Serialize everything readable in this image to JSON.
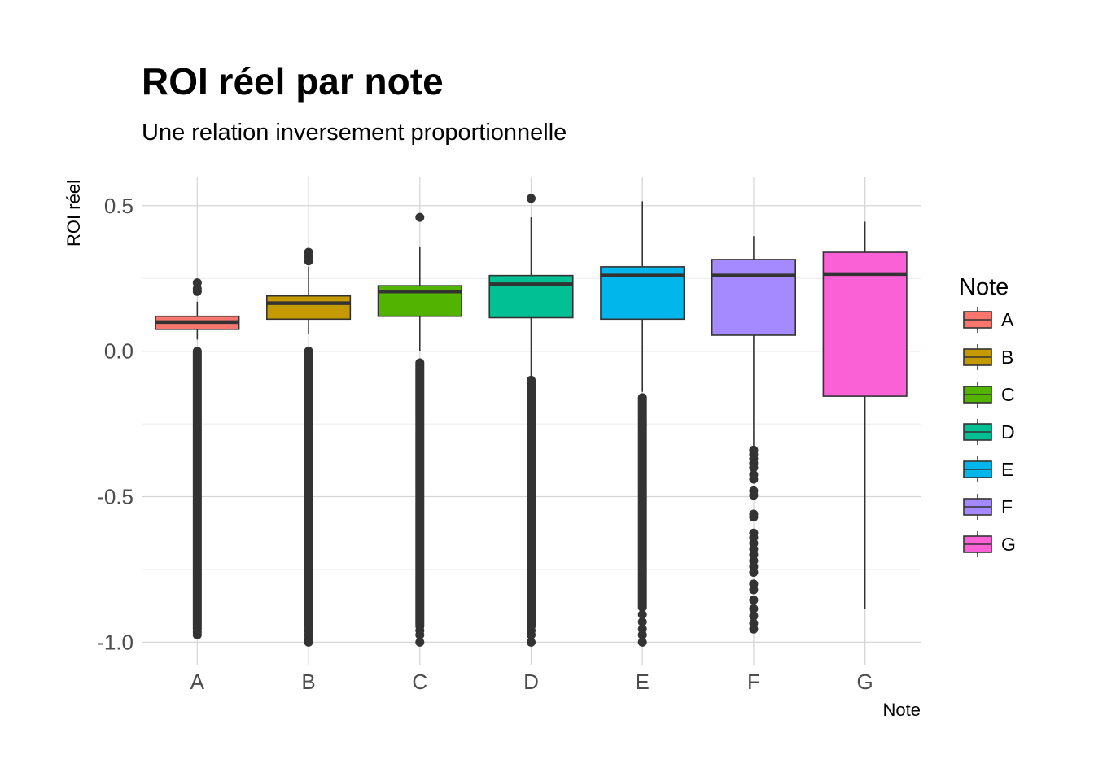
{
  "chart_data": {
    "type": "boxplot",
    "title": "ROI réel par note",
    "subtitle": "Une relation inversement proportionnelle",
    "xlabel": "Note",
    "ylabel": "ROI réel",
    "ylim": [
      -1.08,
      0.6
    ],
    "yticks": [
      0.5,
      0.0,
      -0.5,
      -1.0
    ],
    "ytick_labels": [
      "0.5",
      "0.0",
      "-0.5",
      "-1.0"
    ],
    "categories": [
      "A",
      "B",
      "C",
      "D",
      "E",
      "F",
      "G"
    ],
    "grid": true,
    "legend": {
      "title": "Note",
      "position": "right"
    },
    "series": [
      {
        "name": "A",
        "color": "#F8766D",
        "whisker_low": 0.04,
        "q1": 0.075,
        "median": 0.1,
        "q3": 0.12,
        "whisker_high": 0.17,
        "outliers_high": [
          0.205,
          0.215,
          0.235
        ],
        "outlier_band": [
          -0.955,
          0.0
        ],
        "outliers_extra": [
          -0.965,
          -0.975
        ]
      },
      {
        "name": "B",
        "color": "#C49A00",
        "whisker_low": 0.06,
        "q1": 0.11,
        "median": 0.165,
        "q3": 0.19,
        "whisker_high": 0.29,
        "outliers_high": [
          0.31,
          0.325,
          0.34
        ],
        "outlier_band": [
          -0.945,
          0.0
        ],
        "outliers_extra": [
          -0.96,
          -0.975,
          -0.99,
          -1.0
        ]
      },
      {
        "name": "C",
        "color": "#53B400",
        "whisker_low": 0.0,
        "q1": 0.12,
        "median": 0.205,
        "q3": 0.225,
        "whisker_high": 0.36,
        "outliers_high": [
          0.46
        ],
        "outlier_band": [
          -0.945,
          -0.04
        ],
        "outliers_extra": [
          -0.96,
          -0.975,
          -1.0
        ]
      },
      {
        "name": "D",
        "color": "#00C094",
        "whisker_low": -0.09,
        "q1": 0.115,
        "median": 0.23,
        "q3": 0.26,
        "whisker_high": 0.46,
        "outliers_high": [
          0.525
        ],
        "outlier_band": [
          -0.945,
          -0.1
        ],
        "outliers_extra": [
          -0.96,
          -0.975,
          -1.0
        ]
      },
      {
        "name": "E",
        "color": "#00B6EB",
        "whisker_low": -0.14,
        "q1": 0.11,
        "median": 0.26,
        "q3": 0.29,
        "whisker_high": 0.515,
        "outliers_high": [],
        "outlier_band": [
          -0.88,
          -0.16
        ],
        "outliers_extra": [
          -0.905,
          -0.93,
          -0.955,
          -0.975,
          -1.0
        ]
      },
      {
        "name": "F",
        "color": "#A58AFF",
        "whisker_low": -0.325,
        "q1": 0.055,
        "median": 0.26,
        "q3": 0.315,
        "whisker_high": 0.395,
        "outliers_high": [],
        "outlier_band": null,
        "outliers_extra": [
          -0.34,
          -0.355,
          -0.37,
          -0.385,
          -0.4,
          -0.425,
          -0.44,
          -0.48,
          -0.495,
          -0.56,
          -0.57,
          -0.625,
          -0.64,
          -0.66,
          -0.68,
          -0.7,
          -0.72,
          -0.74,
          -0.76,
          -0.8,
          -0.82,
          -0.855,
          -0.885,
          -0.91,
          -0.935,
          -0.955
        ]
      },
      {
        "name": "G",
        "color": "#FB61D7",
        "whisker_low": -0.885,
        "q1": -0.155,
        "median": 0.265,
        "q3": 0.34,
        "whisker_high": 0.445,
        "outliers_high": [],
        "outlier_band": null,
        "outliers_extra": []
      }
    ]
  }
}
